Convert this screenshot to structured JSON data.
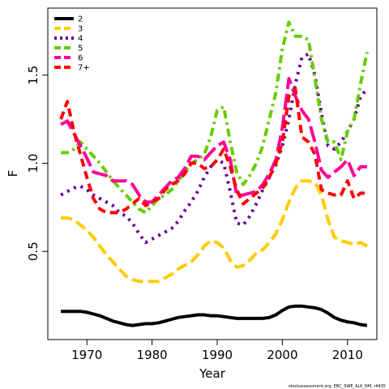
{
  "credit": "stockassessment.org, EBC_SWE_ALK_NM, r4435",
  "chart_data": {
    "type": "line",
    "xlabel": "Year",
    "ylabel": "F",
    "xlim": [
      1964,
      2014.5
    ],
    "ylim": [
      0.0,
      1.88
    ],
    "xticks": [
      1970,
      1980,
      1990,
      2000,
      2010
    ],
    "yticks": [
      0.5,
      1.0,
      1.5
    ],
    "grid": false,
    "legend_position": "top-left",
    "x": [
      1966,
      1967,
      1968,
      1969,
      1970,
      1971,
      1972,
      1973,
      1974,
      1975,
      1976,
      1977,
      1978,
      1979,
      1980,
      1981,
      1982,
      1983,
      1984,
      1985,
      1986,
      1987,
      1988,
      1989,
      1990,
      1991,
      1992,
      1993,
      1994,
      1995,
      1996,
      1997,
      1998,
      1999,
      2000,
      2001,
      2002,
      2003,
      2004,
      2005,
      2006,
      2007,
      2008,
      2009,
      2010,
      2011,
      2012,
      2013
    ],
    "series": [
      {
        "name": "2",
        "color": "#000000",
        "dash": "solid",
        "values": [
          0.16,
          0.16,
          0.16,
          0.16,
          0.155,
          0.145,
          0.135,
          0.12,
          0.105,
          0.095,
          0.085,
          0.08,
          0.085,
          0.09,
          0.09,
          0.095,
          0.105,
          0.115,
          0.125,
          0.13,
          0.135,
          0.14,
          0.14,
          0.135,
          0.135,
          0.13,
          0.125,
          0.12,
          0.12,
          0.12,
          0.12,
          0.12,
          0.125,
          0.14,
          0.165,
          0.185,
          0.19,
          0.19,
          0.185,
          0.18,
          0.17,
          0.15,
          0.125,
          0.11,
          0.1,
          0.095,
          0.085,
          0.08
        ]
      },
      {
        "name": "3",
        "color": "#FFCC00",
        "dash": "long",
        "values": [
          0.69,
          0.69,
          0.68,
          0.65,
          0.62,
          0.58,
          0.53,
          0.48,
          0.44,
          0.4,
          0.36,
          0.34,
          0.33,
          0.33,
          0.33,
          0.33,
          0.35,
          0.37,
          0.4,
          0.42,
          0.44,
          0.48,
          0.53,
          0.56,
          0.55,
          0.52,
          0.45,
          0.41,
          0.42,
          0.45,
          0.49,
          0.51,
          0.55,
          0.6,
          0.68,
          0.78,
          0.86,
          0.9,
          0.9,
          0.89,
          0.82,
          0.68,
          0.58,
          0.56,
          0.55,
          0.54,
          0.55,
          0.53
        ]
      },
      {
        "name": "4",
        "color": "#660099",
        "dash": "dotted",
        "values": [
          0.82,
          0.84,
          0.86,
          0.87,
          0.85,
          0.82,
          0.8,
          0.78,
          0.76,
          0.72,
          0.7,
          0.66,
          0.6,
          0.55,
          0.57,
          0.59,
          0.61,
          0.63,
          0.67,
          0.73,
          0.78,
          0.84,
          0.92,
          0.98,
          1.02,
          1.0,
          0.84,
          0.66,
          0.65,
          0.7,
          0.77,
          0.85,
          0.92,
          0.99,
          1.1,
          1.25,
          1.45,
          1.6,
          1.62,
          1.5,
          1.28,
          1.1,
          1.08,
          1.12,
          1.18,
          1.25,
          1.38,
          1.42
        ]
      },
      {
        "name": "5",
        "color": "#66CC00",
        "dash": "dashdot",
        "values": [
          1.06,
          1.06,
          1.08,
          1.12,
          1.08,
          1.04,
          1.0,
          0.95,
          0.9,
          0.86,
          0.82,
          0.78,
          0.74,
          0.72,
          0.76,
          0.8,
          0.82,
          0.85,
          0.9,
          0.95,
          1.0,
          1.02,
          1.05,
          1.15,
          1.3,
          1.32,
          1.12,
          0.95,
          0.88,
          0.93,
          1.0,
          1.1,
          1.25,
          1.4,
          1.65,
          1.8,
          1.72,
          1.72,
          1.7,
          1.48,
          1.25,
          1.12,
          1.12,
          1.02,
          1.18,
          1.25,
          1.45,
          1.63
        ]
      },
      {
        "name": "6",
        "color": "#FF0099",
        "dash": "longdash",
        "values": [
          1.22,
          1.24,
          1.17,
          1.1,
          1.03,
          0.95,
          0.94,
          0.93,
          0.9,
          0.9,
          0.9,
          0.88,
          0.82,
          0.78,
          0.78,
          0.82,
          0.86,
          0.9,
          0.92,
          0.97,
          1.04,
          1.04,
          1.02,
          1.06,
          1.1,
          1.12,
          1.02,
          0.82,
          0.82,
          0.83,
          0.84,
          0.88,
          0.94,
          1.02,
          1.2,
          1.48,
          1.38,
          1.3,
          1.25,
          1.12,
          0.96,
          0.92,
          0.95,
          0.98,
          1.02,
          0.93,
          0.98,
          0.98
        ]
      },
      {
        "name": "7+",
        "color": "#FF0000",
        "dash": "dashed",
        "values": [
          1.25,
          1.35,
          1.18,
          1.05,
          0.92,
          0.8,
          0.74,
          0.72,
          0.72,
          0.72,
          0.74,
          0.77,
          0.8,
          0.76,
          0.78,
          0.8,
          0.85,
          0.88,
          0.9,
          0.94,
          1.0,
          1.0,
          0.97,
          0.98,
          1.02,
          1.08,
          0.98,
          0.85,
          0.77,
          0.8,
          0.83,
          0.86,
          0.92,
          1.0,
          1.12,
          1.38,
          1.42,
          1.15,
          1.12,
          1.05,
          0.85,
          0.83,
          0.82,
          0.82,
          0.9,
          0.8,
          0.83,
          0.83
        ]
      }
    ]
  }
}
